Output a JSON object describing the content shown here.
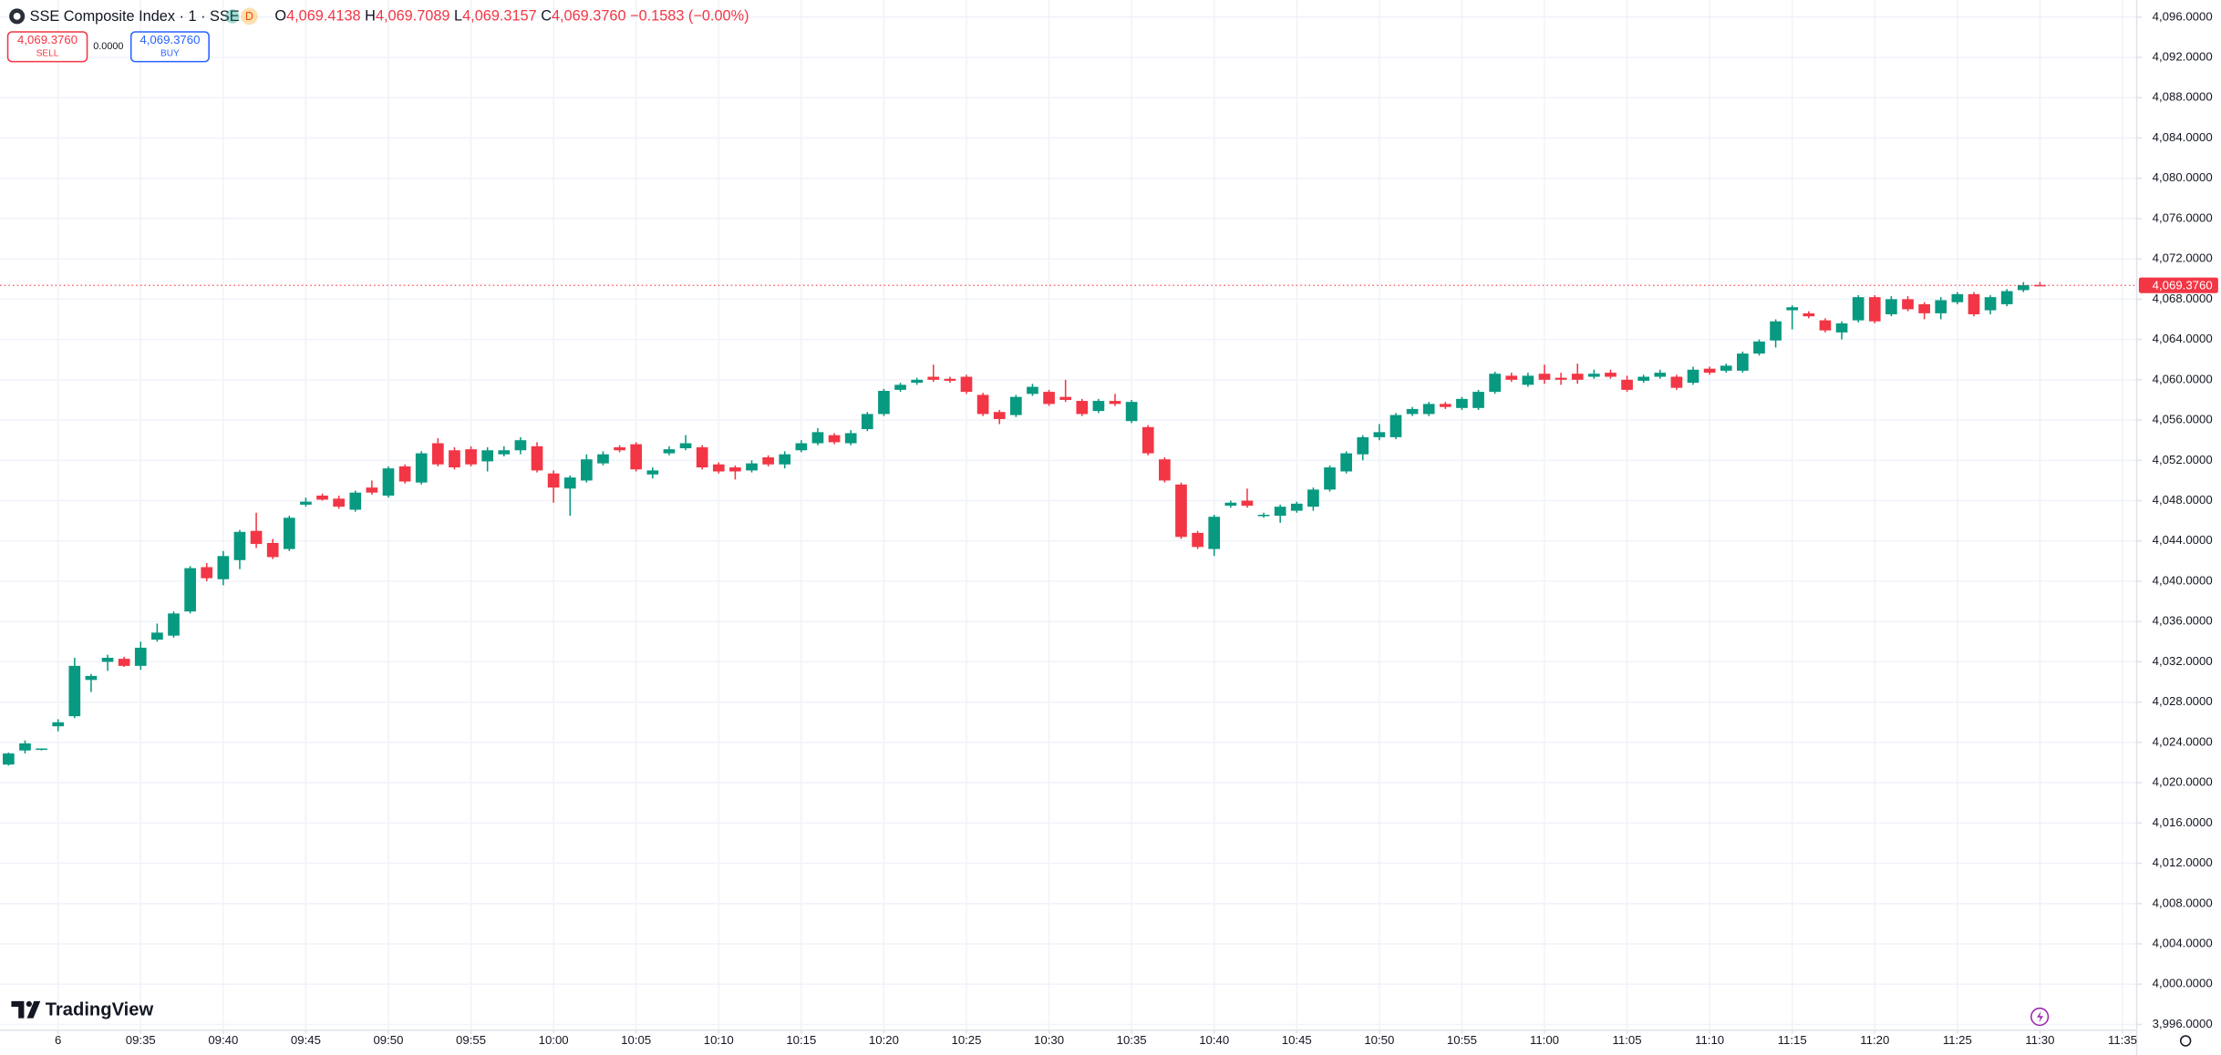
{
  "chart_data": {
    "type": "candlestick",
    "legend": {
      "symbol": "SSE Composite Index · 1 · SSE",
      "badge": "D",
      "o_label": "O",
      "open": "4,069.4138",
      "h_label": "H",
      "high": "4,069.7089",
      "l_label": "L",
      "low": "4,069.3157",
      "c_label": "C",
      "close": "4,069.3760",
      "change": "−0.1583 (−0.00%)"
    },
    "trade": {
      "sell_price": "4,069.3760",
      "sell": "SELL",
      "spread": "0.0000",
      "buy_price": "4,069.3760",
      "buy": "BUY"
    },
    "brand": "TradingView",
    "up_color": "#089981",
    "down_color": "#f23645",
    "grid": true,
    "last_price": {
      "value": 4069.376,
      "label": "4,069.3760"
    },
    "x": [
      "09:27",
      "09:28",
      "09:29",
      "09:30",
      "09:31",
      "09:32",
      "09:33",
      "09:34",
      "09:35",
      "09:36",
      "09:37",
      "09:38",
      "09:39",
      "09:40",
      "09:41",
      "09:42",
      "09:43",
      "09:44",
      "09:45",
      "09:46",
      "09:47",
      "09:48",
      "09:49",
      "09:50",
      "09:51",
      "09:52",
      "09:53",
      "09:54",
      "09:55",
      "09:56",
      "09:57",
      "09:58",
      "09:59",
      "10:00",
      "10:01",
      "10:02",
      "10:03",
      "10:04",
      "10:05",
      "10:06",
      "10:07",
      "10:08",
      "10:09",
      "10:10",
      "10:11",
      "10:12",
      "10:13",
      "10:14",
      "10:15",
      "10:16",
      "10:17",
      "10:18",
      "10:19",
      "10:20",
      "10:21",
      "10:22",
      "10:23",
      "10:24",
      "10:25",
      "10:26",
      "10:27",
      "10:28",
      "10:29",
      "10:30",
      "10:31",
      "10:32",
      "10:33",
      "10:34",
      "10:35",
      "10:36",
      "10:37",
      "10:38",
      "10:39",
      "10:40",
      "10:41",
      "10:42",
      "10:43",
      "10:44",
      "10:45",
      "10:46",
      "10:47",
      "10:48",
      "10:49",
      "10:50",
      "10:51",
      "10:52",
      "10:53",
      "10:54",
      "10:55",
      "10:56",
      "10:57",
      "10:58",
      "10:59",
      "11:00",
      "11:01",
      "11:02",
      "11:03",
      "11:04",
      "11:05",
      "11:06",
      "11:07",
      "11:08",
      "11:09",
      "11:10",
      "11:11",
      "11:12",
      "11:13",
      "11:14",
      "11:15",
      "11:16",
      "11:17",
      "11:18",
      "11:19",
      "11:20",
      "11:21",
      "11:22",
      "11:23",
      "11:24",
      "11:25",
      "11:26",
      "11:27",
      "11:28",
      "11:29",
      "11:30"
    ],
    "open": [
      4021.8,
      4023.2,
      4023.3,
      4025.6,
      4026.6,
      4030.2,
      4032.0,
      4032.3,
      4031.6,
      4034.2,
      4034.6,
      4037.0,
      4041.4,
      4040.2,
      4042.1,
      4045.0,
      4043.8,
      4043.2,
      4047.6,
      4048.5,
      4048.2,
      4047.1,
      4049.3,
      4048.5,
      4051.4,
      4049.8,
      4053.7,
      4053.0,
      4053.1,
      4051.9,
      4052.6,
      4053.0,
      4053.4,
      4050.7,
      4049.2,
      4050.0,
      4051.7,
      4053.3,
      4053.6,
      4050.6,
      4052.7,
      4053.2,
      4053.3,
      4051.6,
      4051.3,
      4051.0,
      4052.3,
      4051.6,
      4053.0,
      4053.7,
      4054.5,
      4053.7,
      4055.1,
      4056.6,
      4059.0,
      4059.7,
      4060.3,
      4060.1,
      4060.3,
      4058.5,
      4056.8,
      4056.5,
      4058.6,
      4058.8,
      4058.3,
      4057.9,
      4056.9,
      4057.9,
      4055.9,
      4055.3,
      4052.1,
      4049.6,
      4044.8,
      4043.2,
      4047.5,
      4048.0,
      4046.5,
      4046.5,
      4047.0,
      4047.4,
      4049.1,
      4050.9,
      4052.6,
      4054.3,
      4054.3,
      4056.6,
      4056.6,
      4057.6,
      4057.2,
      4057.2,
      4058.8,
      4060.4,
      4059.5,
      4060.6,
      4060.2,
      4060.6,
      4060.3,
      4060.7,
      4060.0,
      4059.9,
      4060.3,
      4060.3,
      4059.7,
      4061.1,
      4060.9,
      4060.9,
      4062.6,
      4063.9,
      4066.9,
      4066.6,
      4065.9,
      4064.7,
      4065.9,
      4068.2,
      4066.5,
      4068.0,
      4067.5,
      4066.6,
      4067.7,
      4068.5,
      4066.9,
      4067.5,
      4068.9,
      4069.4138
    ],
    "high": [
      4023.0,
      4024.2,
      4023.4,
      4026.3,
      4032.4,
      4030.8,
      4032.7,
      4032.5,
      4034.0,
      4035.8,
      4037.0,
      4041.5,
      4041.8,
      4043.0,
      4045.1,
      4046.8,
      4044.2,
      4046.5,
      4048.3,
      4048.7,
      4048.5,
      4049.0,
      4050.0,
      4051.4,
      4051.6,
      4052.9,
      4054.2,
      4053.3,
      4053.4,
      4053.3,
      4053.4,
      4054.3,
      4053.8,
      4051.0,
      4050.5,
      4052.6,
      4052.9,
      4053.5,
      4053.8,
      4051.3,
      4053.4,
      4054.5,
      4053.5,
      4051.8,
      4051.5,
      4052.0,
      4052.5,
      4052.9,
      4054.0,
      4055.2,
      4054.7,
      4055.0,
      4056.8,
      4059.1,
      4059.7,
      4060.2,
      4061.5,
      4060.3,
      4060.5,
      4058.7,
      4057.0,
      4058.5,
      4059.6,
      4059.0,
      4060.0,
      4058.1,
      4058.1,
      4058.6,
      4058.0,
      4055.5,
      4052.3,
      4049.8,
      4045.0,
      4046.6,
      4048.0,
      4049.2,
      4046.8,
      4047.6,
      4047.9,
      4049.3,
      4051.5,
      4052.9,
      4054.5,
      4055.6,
      4056.7,
      4057.3,
      4057.8,
      4057.8,
      4058.3,
      4059.0,
      4060.8,
      4060.7,
      4060.7,
      4061.5,
      4060.7,
      4061.6,
      4061.0,
      4061.0,
      4060.4,
      4060.5,
      4061.0,
      4060.5,
      4061.3,
      4061.3,
      4061.6,
      4062.8,
      4064.0,
      4066.0,
      4067.4,
      4066.8,
      4066.1,
      4065.8,
      4068.4,
      4068.4,
      4068.3,
      4068.3,
      4067.7,
      4068.2,
      4068.7,
      4068.7,
      4068.4,
      4069.0,
      4069.7,
      4069.7089
    ],
    "low": [
      4021.7,
      4022.9,
      4023.2,
      4025.1,
      4026.4,
      4029.0,
      4031.1,
      4031.5,
      4031.2,
      4034.0,
      4034.4,
      4036.8,
      4040.0,
      4039.6,
      4041.2,
      4043.3,
      4042.2,
      4043.0,
      4047.4,
      4048.0,
      4047.2,
      4046.9,
      4048.6,
      4048.3,
      4049.7,
      4049.6,
      4051.4,
      4051.1,
      4051.4,
      4050.9,
      4052.4,
      4052.6,
      4050.8,
      4047.8,
      4046.5,
      4049.8,
      4051.5,
      4052.8,
      4050.9,
      4050.2,
      4052.5,
      4053.0,
      4051.1,
      4050.7,
      4050.1,
      4050.8,
      4051.4,
      4051.2,
      4052.8,
      4053.5,
      4053.6,
      4053.5,
      4054.9,
      4056.4,
      4058.8,
      4059.5,
      4059.8,
      4059.7,
      4058.6,
      4056.4,
      4055.6,
      4056.3,
      4058.4,
      4057.4,
      4057.8,
      4056.4,
      4056.7,
      4057.4,
      4055.7,
      4052.5,
      4049.8,
      4044.2,
      4043.2,
      4042.5,
      4047.3,
      4047.3,
      4046.3,
      4045.8,
      4046.8,
      4047.0,
      4048.9,
      4050.7,
      4052.0,
      4054.0,
      4054.1,
      4056.4,
      4056.4,
      4057.1,
      4057.0,
      4057.0,
      4058.6,
      4059.8,
      4059.3,
      4059.6,
      4059.5,
      4059.6,
      4060.1,
      4060.1,
      4058.8,
      4059.7,
      4060.1,
      4059.0,
      4059.5,
      4060.5,
      4060.7,
      4060.7,
      4062.4,
      4063.2,
      4065.0,
      4066.1,
      4064.7,
      4064.0,
      4065.7,
      4065.6,
      4066.3,
      4066.8,
      4066.0,
      4066.0,
      4067.5,
      4066.3,
      4066.5,
      4067.3,
      4068.7,
      4069.3157
    ],
    "close": [
      4022.9,
      4023.9,
      4023.4,
      4026.0,
      4031.6,
      4030.6,
      4032.4,
      4031.6,
      4033.4,
      4034.9,
      4036.8,
      4041.3,
      4040.3,
      4042.5,
      4044.9,
      4043.7,
      4042.4,
      4046.3,
      4047.9,
      4048.1,
      4047.4,
      4048.8,
      4048.8,
      4051.2,
      4049.9,
      4052.7,
      4051.6,
      4051.3,
      4051.6,
      4053.0,
      4053.0,
      4054.0,
      4051.0,
      4049.3,
      4050.3,
      4052.1,
      4052.6,
      4053.0,
      4051.1,
      4051.0,
      4053.1,
      4053.7,
      4051.3,
      4050.9,
      4050.9,
      4051.7,
      4051.6,
      4052.6,
      4053.7,
      4054.8,
      4053.8,
      4054.7,
      4056.6,
      4058.9,
      4059.5,
      4060.0,
      4060.0,
      4059.9,
      4058.8,
      4056.6,
      4056.1,
      4058.3,
      4059.3,
      4057.6,
      4058.0,
      4056.6,
      4057.9,
      4057.6,
      4057.8,
      4052.7,
      4050.0,
      4044.4,
      4043.4,
      4046.4,
      4047.8,
      4047.5,
      4046.6,
      4047.4,
      4047.7,
      4049.1,
      4051.3,
      4052.7,
      4054.3,
      4054.8,
      4056.5,
      4057.1,
      4057.6,
      4057.3,
      4058.1,
      4058.8,
      4060.6,
      4060.0,
      4060.4,
      4060.0,
      4060.0,
      4060.0,
      4060.6,
      4060.3,
      4059.0,
      4060.3,
      4060.7,
      4059.2,
      4061.0,
      4060.7,
      4061.4,
      4062.6,
      4063.8,
      4065.8,
      4067.2,
      4066.3,
      4064.9,
      4065.6,
      4068.2,
      4065.8,
      4068.0,
      4067.0,
      4066.6,
      4067.9,
      4068.5,
      4066.5,
      4068.2,
      4068.8,
      4069.4,
      4069.376
    ],
    "xlim": [
      "09:26:29",
      "11:35:49"
    ],
    "xticks": [
      {
        "value": "09:30",
        "label": "6"
      },
      "09:35",
      "09:40",
      "09:45",
      "09:50",
      "09:55",
      "10:00",
      "10:05",
      "10:10",
      "10:15",
      "10:20",
      "10:25",
      "10:30",
      "10:35",
      "10:40",
      "10:45",
      "10:50",
      "10:55",
      "11:00",
      "11:05",
      "11:10",
      "11:15",
      "11:20",
      "11:25",
      "11:30",
      "11:35"
    ],
    "ylim": [
      3995.5,
      4097.7
    ],
    "yticks": [
      {
        "value": 4096,
        "label": "4,096.0000"
      },
      {
        "value": 4092,
        "label": "4,092.0000"
      },
      {
        "value": 4088,
        "label": "4,088.0000"
      },
      {
        "value": 4084,
        "label": "4,084.0000"
      },
      {
        "value": 4080,
        "label": "4,080.0000"
      },
      {
        "value": 4076,
        "label": "4,076.0000"
      },
      {
        "value": 4072,
        "label": "4,072.0000"
      },
      {
        "value": 4068,
        "label": "4,068.0000"
      },
      {
        "value": 4064,
        "label": "4,064.0000"
      },
      {
        "value": 4060,
        "label": "4,060.0000"
      },
      {
        "value": 4056,
        "label": "4,056.0000"
      },
      {
        "value": 4052,
        "label": "4,052.0000"
      },
      {
        "value": 4048,
        "label": "4,048.0000"
      },
      {
        "value": 4044,
        "label": "4,044.0000"
      },
      {
        "value": 4040,
        "label": "4,040.0000"
      },
      {
        "value": 4036,
        "label": "4,036.0000"
      },
      {
        "value": 4032,
        "label": "4,032.0000"
      },
      {
        "value": 4028,
        "label": "4,028.0000"
      },
      {
        "value": 4024,
        "label": "4,024.0000"
      },
      {
        "value": 4020,
        "label": "4,020.0000"
      },
      {
        "value": 4016,
        "label": "4,016.0000"
      },
      {
        "value": 4012,
        "label": "4,012.0000"
      },
      {
        "value": 4008,
        "label": "4,008.0000"
      },
      {
        "value": 4004,
        "label": "4,004.0000"
      },
      {
        "value": 4000,
        "label": "4,000.0000"
      },
      {
        "value": 3996,
        "label": "3,996.0000"
      }
    ]
  }
}
